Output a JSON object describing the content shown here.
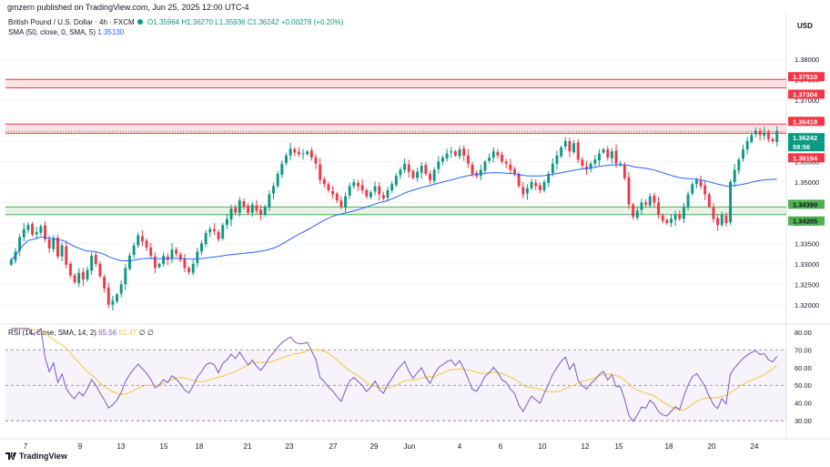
{
  "header": {
    "published": "gmzern published on TradingView.com, Jun 25, 2025 12:00 UTC-4",
    "instrument": "British Pound / U.S. Dollar · 4h · FXCM",
    "open": "O1.35964",
    "high": "H1.36270",
    "low": "L1.35936",
    "close": "C1.36242",
    "change": "+0.00278 (+0.20%)",
    "sma_label": "SMA (50, close, 0, SMA, 5)",
    "sma_value": "1.35130",
    "currency": "USD"
  },
  "rsi_legend": {
    "label": "RSI (14, close, SMA, 14, 2)",
    "rsi_value": "65.56",
    "rsi_ma_value": "62.47",
    "extra": "∅ ∅"
  },
  "brand": "TradingView",
  "colors": {
    "up": "#089981",
    "down": "#f23645",
    "sma": "#2962ff",
    "rsi": "#7e57c2",
    "rsi_ma": "#f7c53b",
    "resistance_zone": "#f23645",
    "support_zone": "#4caf50",
    "current_price_bg": "#089981"
  },
  "chart_data": [
    {
      "type": "candlestick",
      "name": "GBPUSD 4h",
      "x_labels": [
        "7",
        "9",
        "13",
        "15",
        "18",
        "21",
        "23",
        "27",
        "29",
        "Jun",
        "4",
        "6",
        "10",
        "12",
        "15",
        "18",
        "20",
        "24"
      ],
      "y_ticks": [
        "1.38000",
        "1.37500",
        "1.37000",
        "1.36500",
        "1.36000",
        "1.35500",
        "1.35000",
        "1.34500",
        "1.34000",
        "1.33500",
        "1.33000",
        "1.32500",
        "1.32000"
      ],
      "ylim": [
        1.3155,
        1.3845
      ],
      "closes": [
        1.331,
        1.333,
        1.3365,
        1.3385,
        1.3395,
        1.3372,
        1.3378,
        1.3392,
        1.336,
        1.3338,
        1.3362,
        1.3318,
        1.3345,
        1.3298,
        1.3272,
        1.3255,
        1.3278,
        1.3262,
        1.3285,
        1.332,
        1.33,
        1.327,
        1.324,
        1.32,
        1.321,
        1.3225,
        1.325,
        1.329,
        1.332,
        1.3345,
        1.337,
        1.3355,
        1.334,
        1.332,
        1.329,
        1.33,
        1.332,
        1.331,
        1.3335,
        1.3325,
        1.331,
        1.329,
        1.328,
        1.33,
        1.333,
        1.335,
        1.3375,
        1.3385,
        1.338,
        1.336,
        1.3395,
        1.341,
        1.3435,
        1.3425,
        1.3455,
        1.344,
        1.3425,
        1.3445,
        1.343,
        1.342,
        1.344,
        1.347,
        1.349,
        1.352,
        1.3545,
        1.3565,
        1.3582,
        1.3572,
        1.3568,
        1.357,
        1.3575,
        1.356,
        1.3545,
        1.3505,
        1.3495,
        1.348,
        1.347,
        1.3455,
        1.344,
        1.3465,
        1.349,
        1.35,
        1.349,
        1.348,
        1.3465,
        1.3475,
        1.349,
        1.347,
        1.346,
        1.348,
        1.3495,
        1.3515,
        1.353,
        1.3545,
        1.3525,
        1.351,
        1.3525,
        1.354,
        1.352,
        1.3505,
        1.353,
        1.355,
        1.356,
        1.357,
        1.3575,
        1.3565,
        1.358,
        1.3565,
        1.3545,
        1.352,
        1.3515,
        1.353,
        1.355,
        1.356,
        1.3575,
        1.3565,
        1.355,
        1.3545,
        1.353,
        1.352,
        1.349,
        1.347,
        1.3485,
        1.35,
        1.349,
        1.348,
        1.35,
        1.352,
        1.3545,
        1.3565,
        1.3585,
        1.36,
        1.3575,
        1.3595,
        1.3555,
        1.354,
        1.353,
        1.3545,
        1.3555,
        1.357,
        1.358,
        1.356,
        1.3575,
        1.3545,
        1.3545,
        1.351,
        1.3445,
        1.3415,
        1.343,
        1.345,
        1.3445,
        1.3465,
        1.345,
        1.342,
        1.3405,
        1.34,
        1.341,
        1.342,
        1.341,
        1.344,
        1.347,
        1.3495,
        1.3505,
        1.349,
        1.347,
        1.344,
        1.341,
        1.3395,
        1.342,
        1.34,
        1.35,
        1.353,
        1.3555,
        1.358,
        1.36,
        1.3615,
        1.3625,
        1.3615,
        1.362,
        1.3605,
        1.36,
        1.3624
      ]
    },
    {
      "type": "line",
      "name": "SMA (50, close, 0, SMA, 5)",
      "values_note": "50-period simple moving average of closes"
    },
    {
      "type": "rsi",
      "name": "RSI (14, close, SMA, 14, 2)",
      "y_ticks": [
        "80.00",
        "70.00",
        "60.00",
        "50.00",
        "40.00",
        "30.00"
      ],
      "ylim": [
        26,
        84
      ],
      "bands": [
        30,
        50,
        70
      ]
    }
  ],
  "levels": {
    "resistance_upper": {
      "top": "1.37510",
      "bottom": "1.37304"
    },
    "resistance_lower": {
      "top": "1.36418",
      "bottom": "1.36194"
    },
    "support": {
      "top": "1.34390",
      "bottom": "1.34205"
    },
    "current_price": "1.36242",
    "countdown": "59:56"
  }
}
